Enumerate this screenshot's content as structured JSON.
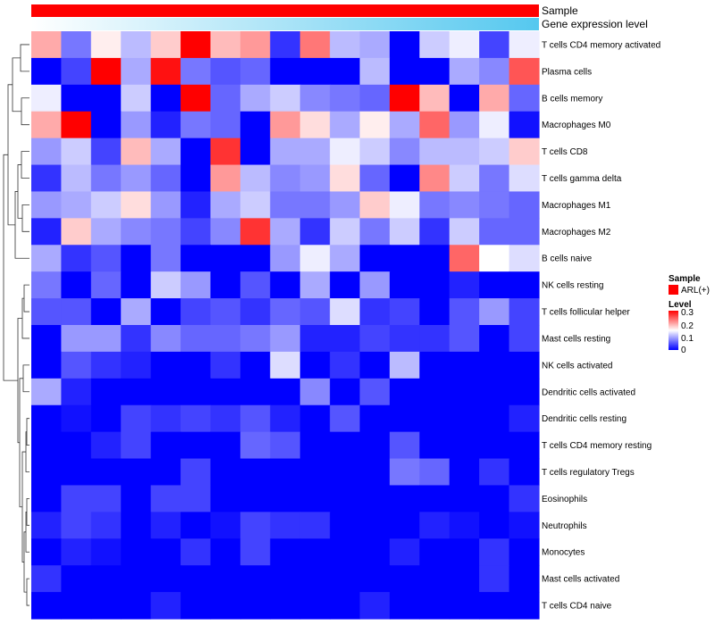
{
  "chart_data": {
    "type": "heatmap",
    "annotations": [
      {
        "name": "Sample",
        "color": "#ff0000"
      },
      {
        "name": "Gene expression level",
        "gradient": [
          "#ffffff",
          "#55c8ef"
        ]
      }
    ],
    "rows": [
      "T cells CD4 memory activated",
      "Plasma cells",
      "B cells memory",
      "Macrophages M0",
      "T cells CD8",
      "T cells gamma delta",
      "Macrophages M1",
      "Macrophages M2",
      "B cells naive",
      "NK cells resting",
      "T cells follicular helper",
      "Mast cells resting",
      "NK cells activated",
      "Dendritic cells activated",
      "Dendritic cells resting",
      "T cells CD4 memory resting",
      "T cells regulatory  Tregs",
      "Eosinophils",
      "Neutrophils",
      "Monocytes",
      "Mast cells activated",
      "T cells CD4 naive"
    ],
    "n_columns": 17,
    "values": [
      [
        0.2,
        0.07,
        0.16,
        0.11,
        0.18,
        0.3,
        0.19,
        0.21,
        0.03,
        0.23,
        0.11,
        0.1,
        0.0,
        0.12,
        0.14,
        0.04,
        0.14
      ],
      [
        0.0,
        0.04,
        0.3,
        0.1,
        0.29,
        0.07,
        0.05,
        0.06,
        0.0,
        0.0,
        0.0,
        0.11,
        0.0,
        0.0,
        0.1,
        0.08,
        0.25
      ],
      [
        0.14,
        0.0,
        0.0,
        0.12,
        0.0,
        0.3,
        0.06,
        0.1,
        0.12,
        0.08,
        0.07,
        0.06,
        0.3,
        0.19,
        0.0,
        0.2,
        0.06
      ],
      [
        0.2,
        0.3,
        0.0,
        0.09,
        0.02,
        0.07,
        0.06,
        0.0,
        0.21,
        0.17,
        0.1,
        0.16,
        0.1,
        0.24,
        0.09,
        0.14,
        0.01
      ],
      [
        0.09,
        0.12,
        0.04,
        0.19,
        0.1,
        0.0,
        0.27,
        0.0,
        0.1,
        0.1,
        0.14,
        0.12,
        0.08,
        0.11,
        0.11,
        0.12,
        0.18
      ],
      [
        0.03,
        0.11,
        0.07,
        0.09,
        0.06,
        0.0,
        0.21,
        0.11,
        0.08,
        0.09,
        0.17,
        0.06,
        0.0,
        0.22,
        0.12,
        0.07,
        0.13
      ],
      [
        0.09,
        0.1,
        0.12,
        0.17,
        0.09,
        0.02,
        0.1,
        0.12,
        0.07,
        0.07,
        0.09,
        0.18,
        0.14,
        0.07,
        0.08,
        0.07,
        0.06
      ],
      [
        0.02,
        0.18,
        0.1,
        0.08,
        0.07,
        0.04,
        0.08,
        0.27,
        0.1,
        0.03,
        0.12,
        0.07,
        0.12,
        0.03,
        0.12,
        0.06,
        0.06
      ],
      [
        0.1,
        0.03,
        0.05,
        0.0,
        0.07,
        0.0,
        0.0,
        0.0,
        0.09,
        0.14,
        0.1,
        0.0,
        0.0,
        0.0,
        0.24,
        0.15,
        0.13
      ],
      [
        0.07,
        0.0,
        0.06,
        0.0,
        0.12,
        0.09,
        0.0,
        0.05,
        0.0,
        0.1,
        0.0,
        0.09,
        0.0,
        0.0,
        0.02,
        0.0,
        0.0
      ],
      [
        0.05,
        0.05,
        0.0,
        0.1,
        0.0,
        0.04,
        0.05,
        0.03,
        0.06,
        0.05,
        0.13,
        0.03,
        0.04,
        0.0,
        0.05,
        0.09,
        0.04
      ],
      [
        0.0,
        0.09,
        0.09,
        0.03,
        0.08,
        0.06,
        0.06,
        0.07,
        0.09,
        0.02,
        0.02,
        0.04,
        0.03,
        0.03,
        0.05,
        0.0,
        0.04
      ],
      [
        0.0,
        0.05,
        0.03,
        0.02,
        0.0,
        0.0,
        0.03,
        0.0,
        0.13,
        0.0,
        0.03,
        0.0,
        0.11,
        0.0,
        0.0,
        0.0,
        0.0
      ],
      [
        0.1,
        0.02,
        0.0,
        0.0,
        0.0,
        0.0,
        0.0,
        0.0,
        0.0,
        0.08,
        0.0,
        0.05,
        0.0,
        0.0,
        0.0,
        0.0,
        0.0
      ],
      [
        0.0,
        0.01,
        0.0,
        0.04,
        0.03,
        0.04,
        0.03,
        0.05,
        0.02,
        0.0,
        0.05,
        0.0,
        0.0,
        0.0,
        0.0,
        0.0,
        0.02
      ],
      [
        0.0,
        0.0,
        0.02,
        0.04,
        0.0,
        0.0,
        0.0,
        0.06,
        0.05,
        0.0,
        0.0,
        0.0,
        0.05,
        0.0,
        0.0,
        0.0,
        0.0
      ],
      [
        0.0,
        0.0,
        0.0,
        0.0,
        0.0,
        0.04,
        0.0,
        0.0,
        0.0,
        0.0,
        0.0,
        0.0,
        0.07,
        0.06,
        0.0,
        0.03,
        0.0
      ],
      [
        0.0,
        0.04,
        0.04,
        0.0,
        0.04,
        0.04,
        0.0,
        0.0,
        0.0,
        0.0,
        0.0,
        0.0,
        0.0,
        0.0,
        0.0,
        0.0,
        0.03
      ],
      [
        0.02,
        0.04,
        0.03,
        0.0,
        0.02,
        0.0,
        0.01,
        0.04,
        0.03,
        0.03,
        0.0,
        0.0,
        0.0,
        0.02,
        0.01,
        0.0,
        0.01
      ],
      [
        0.0,
        0.02,
        0.01,
        0.0,
        0.0,
        0.03,
        0.0,
        0.04,
        0.0,
        0.0,
        0.0,
        0.0,
        0.02,
        0.0,
        0.0,
        0.03,
        0.0
      ],
      [
        0.03,
        0.0,
        0.0,
        0.0,
        0.0,
        0.0,
        0.0,
        0.0,
        0.0,
        0.0,
        0.0,
        0.0,
        0.0,
        0.0,
        0.0,
        0.03,
        0.0
      ],
      [
        0.0,
        0.0,
        0.0,
        0.0,
        0.02,
        0.0,
        0.0,
        0.0,
        0.0,
        0.0,
        0.0,
        0.02,
        0.0,
        0.0,
        0.0,
        0.0,
        0.0
      ]
    ],
    "colorscale": {
      "low": "#0000ff",
      "mid": "#ffffff",
      "high": "#ff0000",
      "min": 0,
      "mid_value": 0.15,
      "max": 0.3
    },
    "legend": {
      "sample_title": "Sample",
      "sample_entry": "ARL(+)",
      "level_title": "Level",
      "ticks": [
        "0.3",
        "0.2",
        "0.1",
        "0"
      ]
    },
    "dendrogram": "row"
  }
}
